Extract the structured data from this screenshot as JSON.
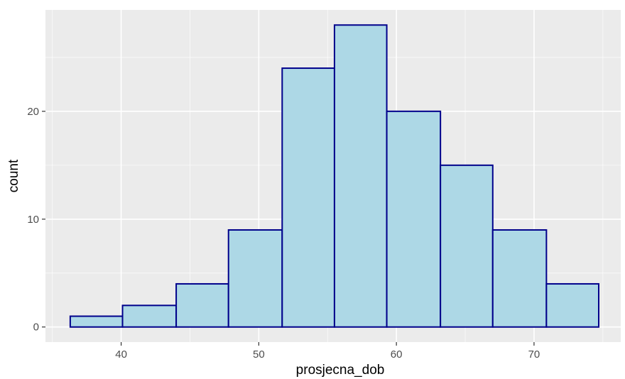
{
  "chart_data": {
    "type": "bar",
    "subtype": "histogram",
    "xlabel": "prosjecna_dob",
    "ylabel": "count",
    "xlim": [
      34.5,
      76.3
    ],
    "ylim": [
      -1.4,
      29.4
    ],
    "x_ticks": [
      {
        "value": 40,
        "label": "40"
      },
      {
        "value": 50,
        "label": "50"
      },
      {
        "value": 60,
        "label": "60"
      },
      {
        "value": 70,
        "label": "70"
      }
    ],
    "y_ticks": [
      {
        "value": 0,
        "label": "0"
      },
      {
        "value": 10,
        "label": "10"
      },
      {
        "value": 20,
        "label": "20"
      }
    ],
    "bins": [
      {
        "x0": 36.3,
        "x1": 40.1,
        "count": 1
      },
      {
        "x0": 40.1,
        "x1": 44.0,
        "count": 2
      },
      {
        "x0": 44.0,
        "x1": 47.8,
        "count": 4
      },
      {
        "x0": 47.8,
        "x1": 51.7,
        "count": 9
      },
      {
        "x0": 51.7,
        "x1": 55.5,
        "count": 24
      },
      {
        "x0": 55.5,
        "x1": 59.3,
        "count": 28
      },
      {
        "x0": 59.3,
        "x1": 63.2,
        "count": 20
      },
      {
        "x0": 63.2,
        "x1": 67.0,
        "count": 15
      },
      {
        "x0": 67.0,
        "x1": 70.9,
        "count": 9
      },
      {
        "x0": 70.9,
        "x1": 74.7,
        "count": 4
      }
    ],
    "grid": true,
    "colors": {
      "panel_background": "#ebebeb",
      "grid_major": "#ffffff",
      "bar_fill": "#add8e6",
      "bar_outline": "#00008b"
    }
  }
}
